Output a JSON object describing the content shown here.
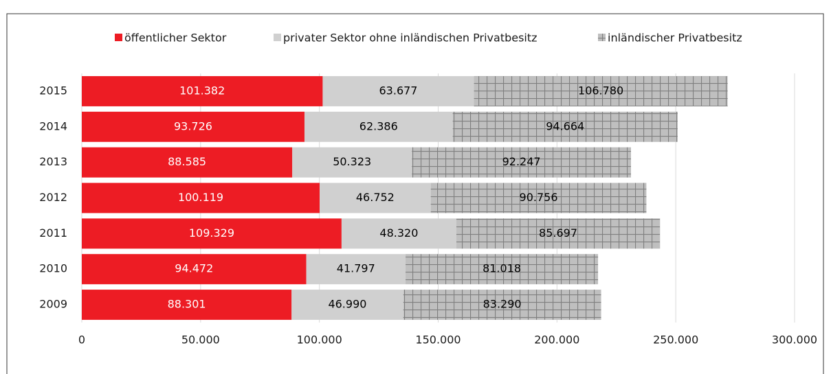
{
  "chart_data": {
    "type": "stacked-barh",
    "categories": [
      "2015",
      "2014",
      "2013",
      "2012",
      "2011",
      "2010",
      "2009"
    ],
    "series": [
      {
        "name": "öffentlicher Sektor",
        "color": "#ed1c24",
        "label_color": "#ffffff",
        "values": [
          101382,
          93726,
          88585,
          100119,
          109329,
          94472,
          88301
        ],
        "value_labels": [
          "101.382",
          "93.726",
          "88.585",
          "100.119",
          "109.329",
          "94.472",
          "88.301"
        ]
      },
      {
        "name": "privater Sektor ohne inländischen Privatbesitz",
        "color": "#d0d0d0",
        "label_color": "#000000",
        "values": [
          63677,
          62386,
          50323,
          46752,
          48320,
          41797,
          46990
        ],
        "value_labels": [
          "63.677",
          "62.386",
          "50.323",
          "46.752",
          "48.320",
          "41.797",
          "46.990"
        ]
      },
      {
        "name": "inländischer Privatbesitz",
        "color": "#bfbfbf",
        "pattern": "grid",
        "label_color": "#000000",
        "values": [
          106780,
          94664,
          92247,
          90756,
          85697,
          81018,
          83290
        ],
        "value_labels": [
          "106.780",
          "94.664",
          "92.247",
          "90.756",
          "85.697",
          "81.018",
          "83.290"
        ]
      }
    ],
    "xlim": [
      0,
      300000
    ],
    "xticks": [
      0,
      {
        "value": 50000,
        "label": "50.000"
      },
      {
        "value": 100000,
        "label": "100.000"
      },
      {
        "value": 150000,
        "label": "150.000"
      },
      {
        "value": 200000,
        "label": "200.000"
      },
      {
        "value": 250000,
        "label": "250.000"
      },
      {
        "value": 300000,
        "label": "300.000"
      }
    ],
    "grid": true,
    "legend": "top"
  }
}
